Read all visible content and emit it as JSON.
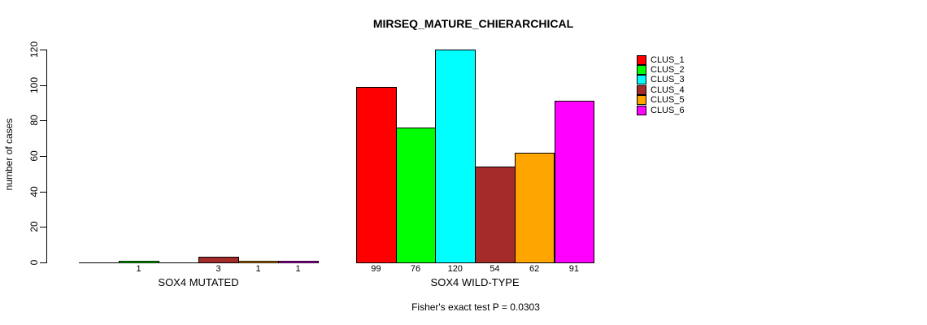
{
  "chart_data": {
    "type": "bar",
    "title": "MIRSEQ_MATURE_CHIERARCHICAL",
    "ylabel": "number of cases",
    "annotation": "Fisher's exact test P = 0.0303",
    "categories": [
      "SOX4 MUTATED",
      "SOX4 WILD-TYPE"
    ],
    "series": [
      {
        "name": "CLUS_1",
        "color": "#FF0000",
        "values": [
          0,
          99
        ]
      },
      {
        "name": "CLUS_2",
        "color": "#00FF00",
        "values": [
          1,
          76
        ]
      },
      {
        "name": "CLUS_3",
        "color": "#00FFFF",
        "values": [
          0,
          120
        ]
      },
      {
        "name": "CLUS_4",
        "color": "#A52A2A",
        "values": [
          3,
          54
        ]
      },
      {
        "name": "CLUS_5",
        "color": "#FFA500",
        "values": [
          1,
          62
        ]
      },
      {
        "name": "CLUS_6",
        "color": "#FF00FF",
        "values": [
          1,
          91
        ]
      }
    ],
    "bar_value_labels": true,
    "hide_zero_value_labels": true,
    "ylim": [
      0,
      120
    ],
    "yticks": [
      0,
      20,
      40,
      60,
      80,
      100,
      120
    ],
    "grid": false,
    "legend_position": "top-right",
    "axis_color": "#000000",
    "text_color": "#000000",
    "background_color": "#FFFFFF"
  }
}
